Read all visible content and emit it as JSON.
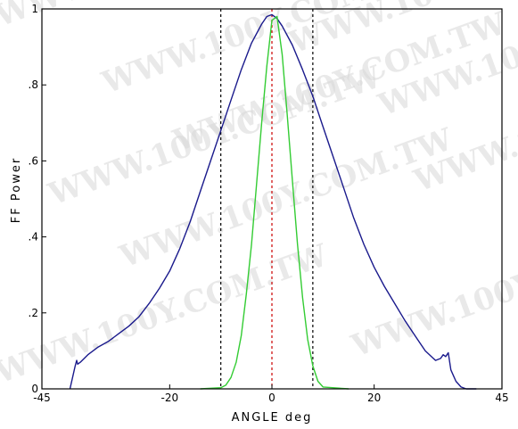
{
  "chart_data": {
    "type": "line",
    "xlabel": "ANGLE deg",
    "ylabel": "FF Power",
    "xlim": [
      -45,
      45
    ],
    "ylim": [
      0,
      1
    ],
    "x_ticks": [
      {
        "value": -45,
        "label": "-45"
      },
      {
        "value": -20,
        "label": "-20"
      },
      {
        "value": 0,
        "label": "0"
      },
      {
        "value": 20,
        "label": "20"
      },
      {
        "value": 45,
        "label": "45"
      }
    ],
    "y_ticks": [
      {
        "value": 0,
        "label": "0"
      },
      {
        "value": 0.2,
        "label": ".2"
      },
      {
        "value": 0.4,
        "label": ".4"
      },
      {
        "value": 0.6,
        "label": ".6"
      },
      {
        "value": 0.8,
        "label": ".8"
      },
      {
        "value": 1,
        "label": "1"
      }
    ],
    "grid": false,
    "series": [
      {
        "color": "#1a1a8c",
        "x": [
          -39.5,
          -39,
          -38.5,
          -38.2,
          -38,
          -37.5,
          -36,
          -34,
          -32,
          -30,
          -28,
          -26,
          -24,
          -22,
          -20,
          -18,
          -16,
          -14,
          -12,
          -10,
          -8,
          -6,
          -4,
          -2,
          -1,
          0,
          1,
          2,
          4,
          6,
          8,
          10,
          12,
          14,
          16,
          18,
          20,
          22,
          24,
          26,
          28,
          30,
          32,
          33,
          33.5,
          34,
          34.5,
          35,
          36,
          37,
          38,
          40
        ],
        "y": [
          0.0,
          0.03,
          0.06,
          0.075,
          0.065,
          0.07,
          0.09,
          0.11,
          0.125,
          0.145,
          0.165,
          0.19,
          0.225,
          0.265,
          0.31,
          0.37,
          0.44,
          0.52,
          0.6,
          0.68,
          0.76,
          0.84,
          0.91,
          0.96,
          0.98,
          0.985,
          0.975,
          0.955,
          0.905,
          0.84,
          0.77,
          0.69,
          0.61,
          0.53,
          0.45,
          0.38,
          0.32,
          0.27,
          0.225,
          0.18,
          0.14,
          0.1,
          0.075,
          0.08,
          0.09,
          0.085,
          0.095,
          0.05,
          0.02,
          0.005,
          0.0,
          0.0
        ]
      },
      {
        "color": "#33cc33",
        "x": [
          -14,
          -10,
          -9,
          -8,
          -7,
          -6,
          -5,
          -4,
          -3,
          -2,
          -1,
          0,
          1,
          2,
          3,
          4,
          5,
          6,
          7,
          8,
          9,
          10,
          15
        ],
        "y": [
          0.0,
          0.003,
          0.01,
          0.03,
          0.07,
          0.14,
          0.25,
          0.38,
          0.54,
          0.7,
          0.85,
          0.97,
          0.98,
          0.88,
          0.72,
          0.55,
          0.38,
          0.24,
          0.13,
          0.06,
          0.02,
          0.005,
          0.0
        ]
      }
    ],
    "vlines": [
      {
        "x": -10,
        "color": "#000000",
        "style": "dashed"
      },
      {
        "x": 8,
        "color": "#000000",
        "style": "dashed"
      },
      {
        "x": 0,
        "color": "#cc0000",
        "style": "dashed"
      }
    ]
  },
  "watermark": {
    "text": "WWW.100Y.COM.TW"
  }
}
